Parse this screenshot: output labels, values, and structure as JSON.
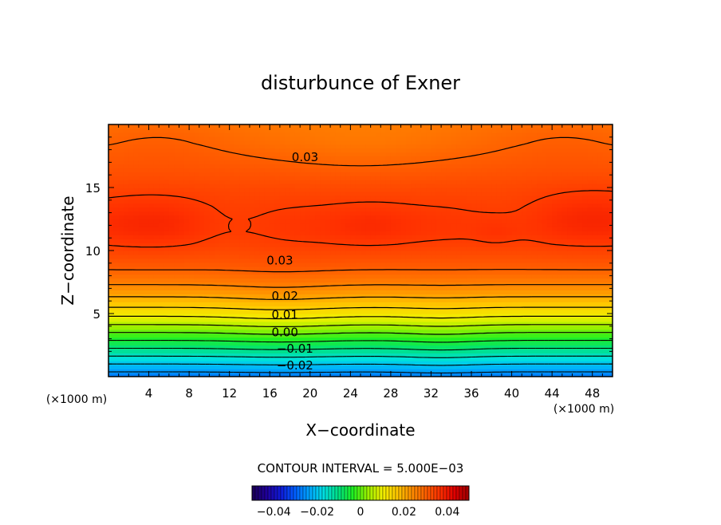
{
  "chart_data": {
    "type": "heatmap",
    "title": "disturbunce of Exner",
    "xlabel": "X−coordinate",
    "ylabel": "Z−coordinate",
    "x_unit": "(×1000 m)",
    "y_unit": "(×1000 m)",
    "xlim": [
      0,
      50
    ],
    "ylim": [
      0,
      20
    ],
    "x_ticks": [
      4,
      8,
      12,
      16,
      20,
      24,
      28,
      32,
      36,
      40,
      44,
      48
    ],
    "y_ticks": [
      5,
      10,
      15
    ],
    "contour_interval_text": "CONTOUR INTERVAL = 5.000E−03",
    "contour_interval": 0.005,
    "contour_labels": [
      {
        "text": "0.03",
        "x": 19.5,
        "y": 17.4
      },
      {
        "text": "0.03",
        "x": 17.0,
        "y": 9.2
      },
      {
        "text": "0.02",
        "x": 17.5,
        "y": 6.4
      },
      {
        "text": "0.01",
        "x": 17.5,
        "y": 4.9
      },
      {
        "text": "0.00",
        "x": 17.5,
        "y": 3.5
      },
      {
        "text": "−0.01",
        "x": 18.5,
        "y": 2.2
      },
      {
        "text": "−0.02",
        "x": 18.5,
        "y": 0.9
      }
    ],
    "z_range": [
      -0.05,
      0.05
    ],
    "profile_z": [
      0,
      0.5,
      1.5,
      2.5,
      3.5,
      4.5,
      5.5,
      6.5,
      7.5,
      8.5,
      9.5,
      10.5,
      11.5,
      12.5,
      13.5,
      15,
      17,
      18.5,
      20
    ],
    "profile_value": [
      -0.028,
      -0.024,
      -0.016,
      -0.008,
      0.0,
      0.008,
      0.015,
      0.021,
      0.026,
      0.03,
      0.0325,
      0.0345,
      0.0358,
      0.0358,
      0.035,
      0.0335,
      0.031,
      0.029,
      0.0275
    ],
    "colorbar": {
      "ticks": [
        {
          "value": -0.04,
          "label": "−0.04"
        },
        {
          "value": -0.02,
          "label": "−0.02"
        },
        {
          "value": 0,
          "label": "0"
        },
        {
          "value": 0.02,
          "label": "0.02"
        },
        {
          "value": 0.04,
          "label": "0.04"
        }
      ],
      "colors": [
        "#1a0055",
        "#1f009a",
        "#0f1ad8",
        "#0060ff",
        "#00a8ff",
        "#00e0e0",
        "#00e080",
        "#20f020",
        "#9af000",
        "#f0f000",
        "#ffc800",
        "#ff9000",
        "#ff6000",
        "#ff3000",
        "#e00000",
        "#a00000"
      ]
    }
  }
}
